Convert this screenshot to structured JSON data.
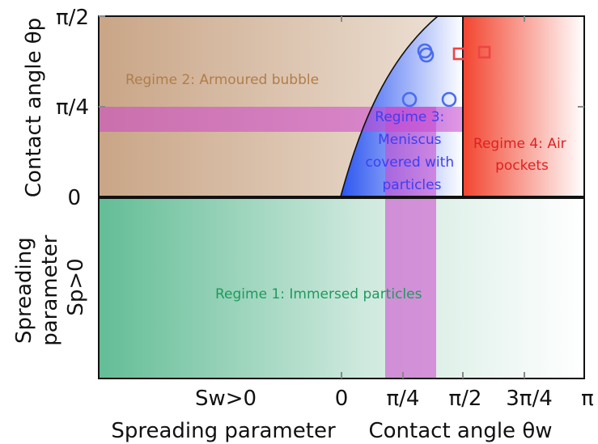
{
  "regimes": {
    "r1": "Regime 1: Immersed particles",
    "r2": "Regime 2: Armoured bubble",
    "r3": [
      "Regime 3:",
      "Meniscus",
      "covered with",
      "particles"
    ],
    "r4": [
      "Regime 4: Air",
      "pockets"
    ]
  },
  "y_axis": {
    "upper_label": "Contact angle θp",
    "lower_label": [
      "Spreading",
      "parameter",
      "Sp>0"
    ],
    "ticks": [
      "π/2",
      "π/4",
      "0"
    ]
  },
  "x_axis": {
    "left_title": "Spreading parameter",
    "right_title": "Contact angle θw",
    "ticks": [
      "Sw>0",
      "0",
      "π/4",
      "π/2",
      "3π/4",
      "π"
    ]
  },
  "colors": {
    "regime1_green": "#63bd96",
    "regime2_tan": "#c9a586",
    "regime3_blue": "#2b55f0",
    "regime4_red": "#f2452f",
    "band_magenta": "#cc44cc",
    "circle_marker": "#4a6cf0",
    "square_marker": "#ee4444"
  },
  "markers": {
    "circles": [
      {
        "theta_w_over_pi": 0.33,
        "theta_p_over_pi": 0.395
      },
      {
        "theta_w_over_pi": 0.335,
        "theta_p_over_pi": 0.385
      },
      {
        "theta_w_over_pi": 0.275,
        "theta_p_over_pi": 0.2975
      },
      {
        "theta_w_over_pi": 0.44,
        "theta_p_over_pi": 0.2975
      }
    ],
    "squares": [
      {
        "theta_w_over_pi": 0.475,
        "theta_p_over_pi": 0.39
      },
      {
        "theta_w_over_pi": 0.595,
        "theta_p_over_pi": 0.395
      }
    ]
  }
}
